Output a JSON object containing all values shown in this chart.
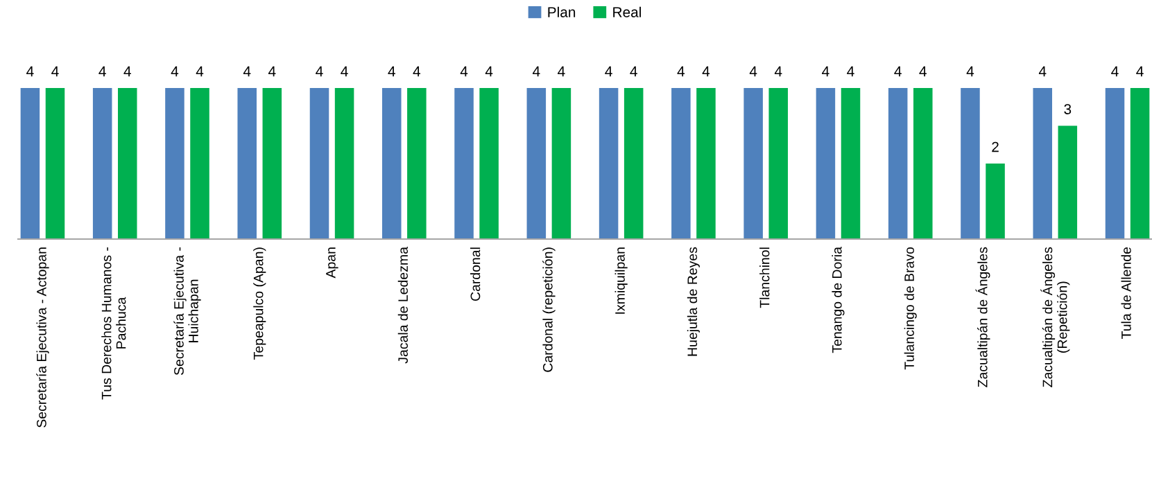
{
  "chart_data": {
    "type": "bar",
    "categories": [
      "Secretaría Ejecutiva - Actopan",
      "Tus Derechos Humanos -\nPachuca",
      "Secretaría Ejecutiva -\nHuichapan",
      "Tepeapulco (Apan)",
      "Apan",
      "Jacala de Ledezma",
      "Cardonal",
      "Cardonal (repetición)",
      "Ixmiquilpan",
      "Huejutla de Reyes",
      "Tlanchinol",
      "Tenango de Doria",
      "Tulancingo de Bravo",
      "Zacualtipán de Ángeles",
      "Zacualtipán de Ángeles\n(Repetición)",
      "Tula de Allende"
    ],
    "series": [
      {
        "name": "Plan",
        "color": "#4f81bd",
        "values": [
          4,
          4,
          4,
          4,
          4,
          4,
          4,
          4,
          4,
          4,
          4,
          4,
          4,
          4,
          4,
          4
        ]
      },
      {
        "name": "Real",
        "color": "#00b050",
        "values": [
          4,
          4,
          4,
          4,
          4,
          4,
          4,
          4,
          4,
          4,
          4,
          4,
          4,
          2,
          3,
          4
        ]
      }
    ],
    "data_labels": true,
    "legend": "top",
    "grid": false,
    "tick_labels": "x"
  }
}
